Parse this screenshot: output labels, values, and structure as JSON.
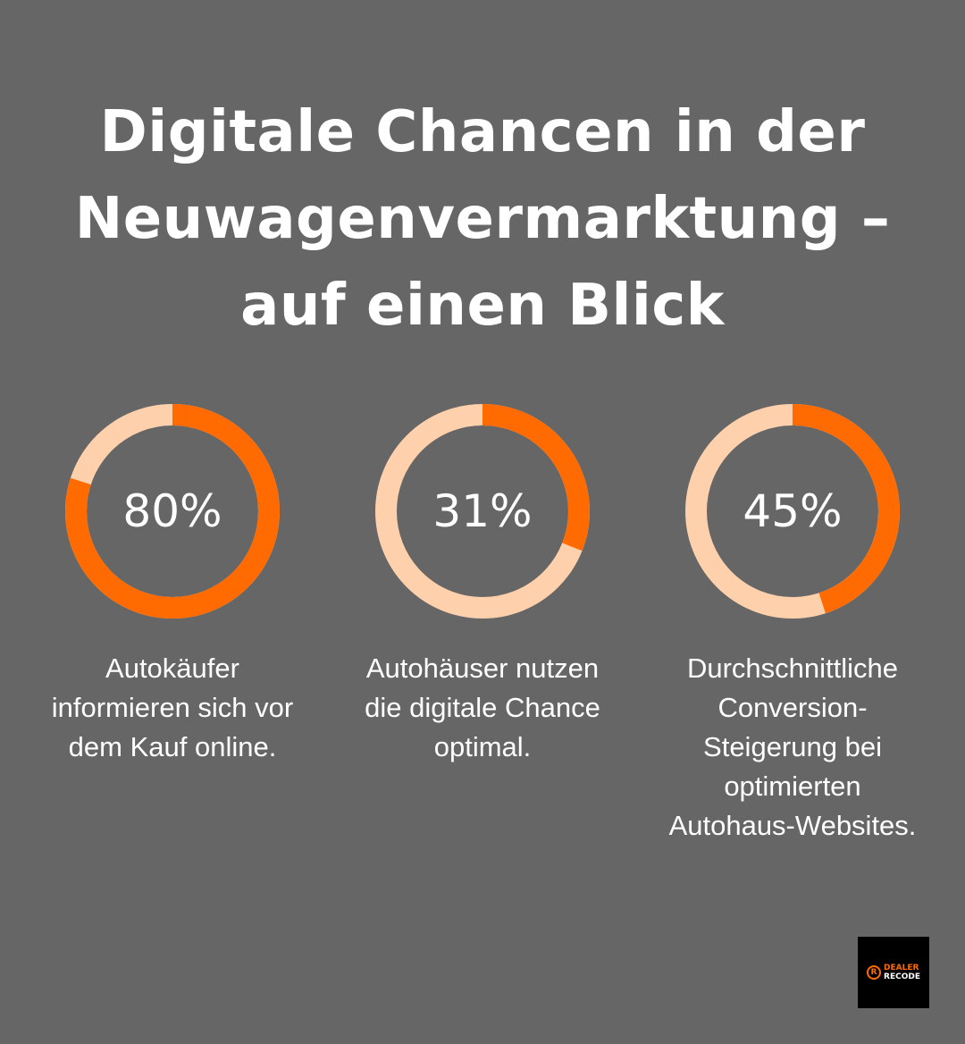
{
  "title": {
    "lines": [
      "Digitale Chancen in der",
      "Neuwagenvermarktung –",
      "auf einen Blick"
    ]
  },
  "colors": {
    "background": "#666666",
    "accent": "#FF6B00",
    "track": "#FFD0AC"
  },
  "stats": [
    {
      "value": 80,
      "label": "80%",
      "description": [
        "Autokäufer",
        "informieren sich vor",
        "dem Kauf online."
      ]
    },
    {
      "value": 31,
      "label": "31%",
      "description": [
        "Autohäuser nutzen",
        "die digitale Chance",
        "optimal."
      ]
    },
    {
      "value": 45,
      "label": "45%",
      "description": [
        "Durchschnittliche",
        "Conversion-",
        "Steigerung bei",
        "optimierten",
        "Autohaus-Websites."
      ]
    }
  ],
  "logo": {
    "line1": "DEALER",
    "line2": "RECODE"
  }
}
